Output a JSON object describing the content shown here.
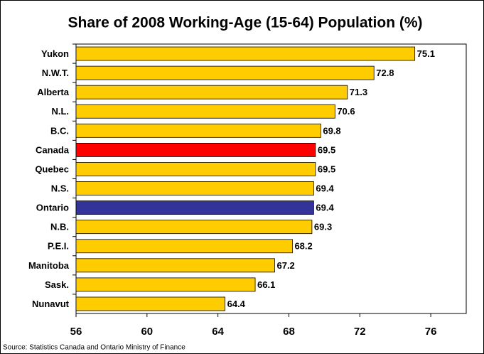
{
  "chart_data": {
    "type": "hbar",
    "title": "Share of 2008 Working-Age (15-64) Population (%)",
    "categories": [
      "Yukon",
      "N.W.T.",
      "Alberta",
      "N.L.",
      "B.C.",
      "Canada",
      "Quebec",
      "N.S.",
      "Ontario",
      "N.B.",
      "P.E.I.",
      "Manitoba",
      "Sask.",
      "Nunavut"
    ],
    "values": [
      75.1,
      72.8,
      71.3,
      70.6,
      69.8,
      69.5,
      69.5,
      69.4,
      69.4,
      69.3,
      68.2,
      67.2,
      66.1,
      64.4
    ],
    "colors": [
      "#ffcc00",
      "#ffcc00",
      "#ffcc00",
      "#ffcc00",
      "#ffcc00",
      "#ff0000",
      "#ffcc00",
      "#ffcc00",
      "#333399",
      "#ffcc00",
      "#ffcc00",
      "#ffcc00",
      "#ffcc00",
      "#ffcc00"
    ],
    "xlim": [
      56,
      78
    ],
    "xticks": [
      56,
      60,
      64,
      68,
      72,
      76
    ],
    "source": "Source: Statistics Canada and Ontario Ministry of Finance"
  }
}
